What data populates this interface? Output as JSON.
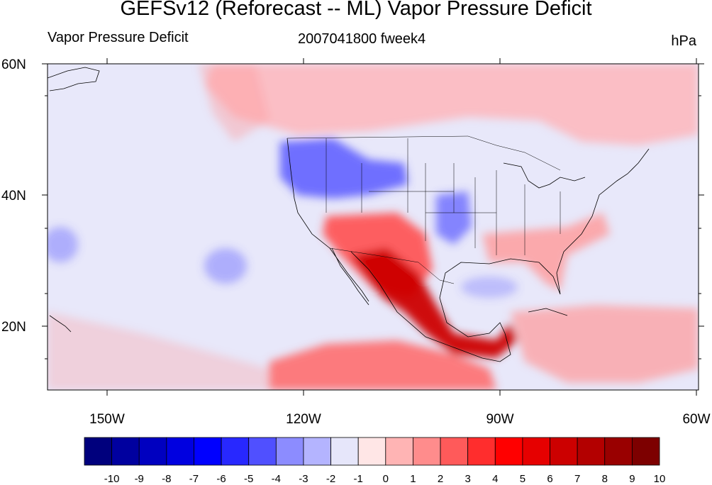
{
  "title": "GEFSv12 (Reforecast -- ML) Vapor Pressure Deficit",
  "left_label": "Vapor Pressure Deficit",
  "center_label": "2007041800 fweek4",
  "units_label": "hPa",
  "map": {
    "lat_ticks": [
      "60N",
      "40N",
      "20N"
    ],
    "lon_ticks": [
      "150W",
      "120W",
      "90W",
      "60W"
    ],
    "ocean_color": "#e8e8fa",
    "regions": [
      {
        "name": "canada-dry",
        "color": "#ffb3b8"
      },
      {
        "name": "mexico-very-dry",
        "color": "#cc0000"
      },
      {
        "name": "southwest-dry",
        "color": "#ff5050"
      },
      {
        "name": "southeast-dry",
        "color": "#ff9999"
      },
      {
        "name": "northwest-moist",
        "color": "#5a5aff"
      },
      {
        "name": "tropical-pacific-dry",
        "color": "#ff6666"
      }
    ]
  },
  "colorbar": {
    "labels": [
      "-10",
      "-9",
      "-8",
      "-7",
      "-6",
      "-5",
      "-4",
      "-3",
      "-2",
      "-1",
      "0",
      "1",
      "2",
      "3",
      "4",
      "5",
      "6",
      "7",
      "8",
      "9",
      "10"
    ],
    "colors": [
      "#00007d",
      "#00009f",
      "#0000c0",
      "#0000e0",
      "#0000ff",
      "#2828ff",
      "#5050ff",
      "#8c8cff",
      "#b4b4ff",
      "#e6e6fa",
      "#ffe6e6",
      "#ffb4b4",
      "#ff8c8c",
      "#ff5a5a",
      "#ff2d2d",
      "#ff0000",
      "#e60000",
      "#cc0000",
      "#b30000",
      "#990000",
      "#7d0000"
    ]
  }
}
